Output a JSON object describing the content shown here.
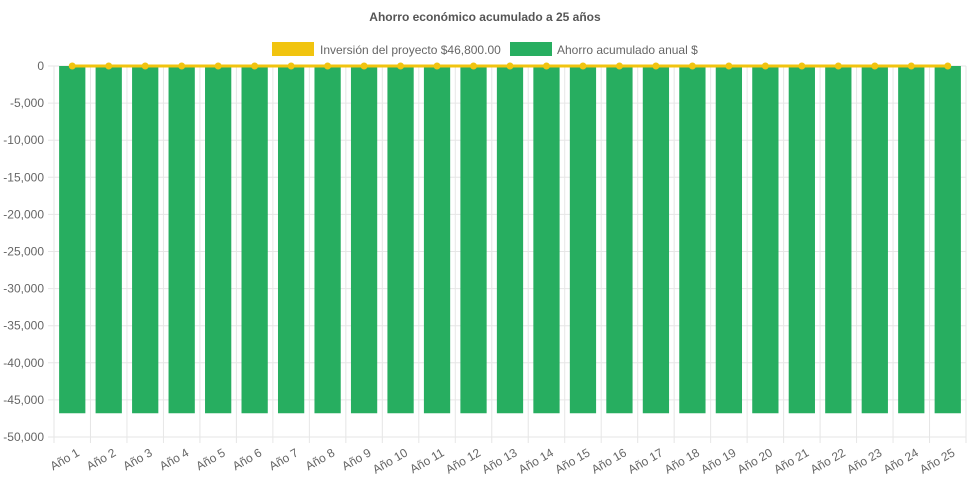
{
  "chart_data": {
    "type": "bar",
    "title": "Ahorro económico acumulado a 25 años",
    "categories": [
      "Año 1",
      "Año 2",
      "Año 3",
      "Año 4",
      "Año 5",
      "Año 6",
      "Año 7",
      "Año 8",
      "Año 9",
      "Año 10",
      "Año 11",
      "Año 12",
      "Año 13",
      "Año 14",
      "Año 15",
      "Año 16",
      "Año 17",
      "Año 18",
      "Año 19",
      "Año 20",
      "Año 21",
      "Año 22",
      "Año 23",
      "Año 24",
      "Año 25"
    ],
    "series": [
      {
        "name": "Inversión del proyecto $46,800.00",
        "kind": "line",
        "color": "#f1c40f",
        "values": [
          0,
          0,
          0,
          0,
          0,
          0,
          0,
          0,
          0,
          0,
          0,
          0,
          0,
          0,
          0,
          0,
          0,
          0,
          0,
          0,
          0,
          0,
          0,
          0,
          0
        ]
      },
      {
        "name": "Ahorro acumulado anual $",
        "kind": "bar",
        "color": "#27ae60",
        "values": [
          -46800,
          -46800,
          -46800,
          -46800,
          -46800,
          -46800,
          -46800,
          -46800,
          -46800,
          -46800,
          -46800,
          -46800,
          -46800,
          -46800,
          -46800,
          -46800,
          -46800,
          -46800,
          -46800,
          -46800,
          -46800,
          -46800,
          -46800,
          -46800,
          -46800
        ]
      }
    ],
    "ylim": [
      -50000,
      0
    ],
    "yticks": [
      0,
      -5000,
      -10000,
      -15000,
      -20000,
      -25000,
      -30000,
      -35000,
      -40000,
      -45000,
      -50000
    ],
    "ytick_labels": [
      "0",
      "-5,000",
      "-10,000",
      "-15,000",
      "-20,000",
      "-25,000",
      "-30,000",
      "-35,000",
      "-40,000",
      "-45,000",
      "-50,000"
    ],
    "xlabel": "",
    "ylabel": "",
    "grid": true,
    "legend_position": "top"
  }
}
